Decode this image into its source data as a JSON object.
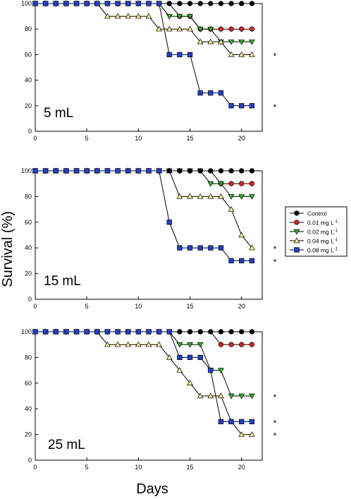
{
  "figure": {
    "ylabel": "Survival (%)",
    "xlabel": "Days"
  },
  "legend": {
    "entries": [
      {
        "label": "Control",
        "sup": "",
        "color": "#000000",
        "marker": "circle"
      },
      {
        "label": "0.01 mg L",
        "sup": "-1",
        "color": "#e02020",
        "marker": "circle"
      },
      {
        "label": "0.02 mg L",
        "sup": "-1",
        "color": "#22c022",
        "marker": "triangle-down"
      },
      {
        "label": "0.04 mg L",
        "sup": "-1",
        "color": "#f4f28a",
        "marker": "triangle-up"
      },
      {
        "label": "0.08 mg L",
        "sup": "-1",
        "color": "#1f3fd0",
        "marker": "square"
      }
    ]
  },
  "chart_data": [
    {
      "type": "line",
      "panel_label": "5 mL",
      "xlim": [
        0,
        22
      ],
      "ylim": [
        0,
        100
      ],
      "xticks": [
        0,
        5,
        10,
        15,
        20
      ],
      "yticks": [
        0,
        20,
        40,
        60,
        80,
        100
      ],
      "x": [
        0,
        1,
        2,
        3,
        4,
        5,
        6,
        7,
        8,
        9,
        10,
        11,
        12,
        13,
        14,
        15,
        16,
        17,
        18,
        19,
        20,
        21
      ],
      "series": [
        {
          "name": "Control",
          "values": [
            100,
            100,
            100,
            100,
            100,
            100,
            100,
            100,
            100,
            100,
            100,
            100,
            100,
            100,
            100,
            100,
            100,
            100,
            100,
            100,
            100,
            100
          ]
        },
        {
          "name": "0.01 mg L-1",
          "values": [
            100,
            100,
            100,
            100,
            100,
            100,
            100,
            100,
            100,
            100,
            100,
            100,
            100,
            100,
            90,
            90,
            80,
            80,
            80,
            80,
            80,
            80
          ]
        },
        {
          "name": "0.02 mg L-1",
          "values": [
            100,
            100,
            100,
            100,
            100,
            100,
            100,
            100,
            100,
            100,
            100,
            100,
            100,
            90,
            90,
            90,
            80,
            80,
            70,
            70,
            70,
            70
          ]
        },
        {
          "name": "0.04 mg L-1",
          "values": [
            100,
            100,
            100,
            100,
            100,
            100,
            100,
            90,
            90,
            90,
            90,
            90,
            80,
            80,
            80,
            80,
            70,
            70,
            70,
            60,
            60,
            60
          ]
        },
        {
          "name": "0.08 mg L-1",
          "values": [
            100,
            100,
            100,
            100,
            100,
            100,
            100,
            100,
            100,
            100,
            100,
            100,
            100,
            60,
            60,
            60,
            30,
            30,
            30,
            20,
            20,
            20
          ]
        }
      ],
      "annotations": [
        {
          "text": "*",
          "y": 60
        },
        {
          "text": "*",
          "y": 20
        }
      ]
    },
    {
      "type": "line",
      "panel_label": "15 mL",
      "xlim": [
        0,
        22
      ],
      "ylim": [
        0,
        100
      ],
      "xticks": [
        0,
        5,
        10,
        15,
        20
      ],
      "yticks": [
        0,
        20,
        40,
        60,
        80,
        100
      ],
      "x": [
        0,
        1,
        2,
        3,
        4,
        5,
        6,
        7,
        8,
        9,
        10,
        11,
        12,
        13,
        14,
        15,
        16,
        17,
        18,
        19,
        20,
        21
      ],
      "series": [
        {
          "name": "Control",
          "values": [
            100,
            100,
            100,
            100,
            100,
            100,
            100,
            100,
            100,
            100,
            100,
            100,
            100,
            100,
            100,
            100,
            100,
            100,
            100,
            100,
            100,
            100
          ]
        },
        {
          "name": "0.01 mg L-1",
          "values": [
            100,
            100,
            100,
            100,
            100,
            100,
            100,
            100,
            100,
            100,
            100,
            100,
            100,
            100,
            100,
            100,
            100,
            100,
            90,
            90,
            90,
            90
          ]
        },
        {
          "name": "0.02 mg L-1",
          "values": [
            100,
            100,
            100,
            100,
            100,
            100,
            100,
            100,
            100,
            100,
            100,
            100,
            100,
            100,
            100,
            100,
            100,
            90,
            90,
            80,
            80,
            80
          ]
        },
        {
          "name": "0.04 mg L-1",
          "values": [
            100,
            100,
            100,
            100,
            100,
            100,
            100,
            100,
            100,
            100,
            100,
            100,
            100,
            100,
            80,
            80,
            80,
            80,
            80,
            70,
            50,
            40
          ]
        },
        {
          "name": "0.08 mg L-1",
          "values": [
            100,
            100,
            100,
            100,
            100,
            100,
            100,
            100,
            100,
            100,
            100,
            100,
            100,
            60,
            40,
            40,
            40,
            40,
            40,
            30,
            30,
            30
          ]
        }
      ],
      "annotations": [
        {
          "text": "*",
          "y": 40
        },
        {
          "text": "*",
          "y": 30
        }
      ]
    },
    {
      "type": "line",
      "panel_label": "25 mL",
      "xlim": [
        0,
        22
      ],
      "ylim": [
        0,
        100
      ],
      "xticks": [
        0,
        5,
        10,
        15,
        20
      ],
      "yticks": [
        0,
        20,
        40,
        60,
        80,
        100
      ],
      "x": [
        0,
        1,
        2,
        3,
        4,
        5,
        6,
        7,
        8,
        9,
        10,
        11,
        12,
        13,
        14,
        15,
        16,
        17,
        18,
        19,
        20,
        21
      ],
      "series": [
        {
          "name": "Control",
          "values": [
            100,
            100,
            100,
            100,
            100,
            100,
            100,
            100,
            100,
            100,
            100,
            100,
            100,
            100,
            100,
            100,
            100,
            100,
            100,
            100,
            100,
            100
          ]
        },
        {
          "name": "0.01 mg L-1",
          "values": [
            100,
            100,
            100,
            100,
            100,
            100,
            100,
            100,
            100,
            100,
            100,
            100,
            100,
            100,
            100,
            100,
            100,
            100,
            90,
            90,
            90,
            90
          ]
        },
        {
          "name": "0.02 mg L-1",
          "values": [
            100,
            100,
            100,
            100,
            100,
            100,
            100,
            100,
            100,
            100,
            100,
            100,
            100,
            100,
            90,
            90,
            90,
            70,
            70,
            50,
            50,
            50
          ]
        },
        {
          "name": "0.04 mg L-1",
          "values": [
            100,
            100,
            100,
            100,
            100,
            100,
            100,
            90,
            90,
            90,
            90,
            90,
            90,
            80,
            70,
            60,
            50,
            50,
            50,
            30,
            20,
            20
          ]
        },
        {
          "name": "0.08 mg L-1",
          "values": [
            100,
            100,
            100,
            100,
            100,
            100,
            100,
            100,
            100,
            100,
            100,
            100,
            100,
            100,
            80,
            80,
            80,
            70,
            30,
            30,
            30,
            30
          ]
        }
      ],
      "annotations": [
        {
          "text": "*",
          "y": 50
        },
        {
          "text": "*",
          "y": 30
        },
        {
          "text": "*",
          "y": 20
        }
      ]
    }
  ]
}
